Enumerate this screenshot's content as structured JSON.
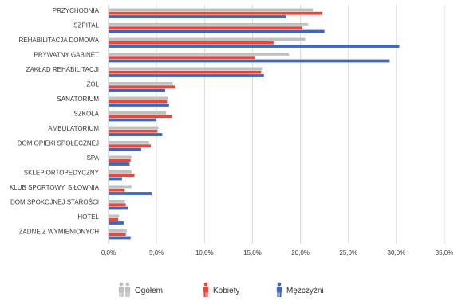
{
  "chart_data": {
    "type": "bar",
    "orientation": "horizontal",
    "categories": [
      "PRZYCHODNIA",
      "SZPITAL",
      "REHABILITACJA DOMOWA",
      "PRYWATNY GABINET",
      "ZAKŁAD REHABILITACJI",
      "ZOL",
      "SANATORIUM",
      "SZKOŁA",
      "AMBULATORIUM",
      "DOM OPIEKI SPOŁECZNEJ",
      "SPA",
      "SKLEP ORTOPEDYCZNY",
      "KLUB SPORTOWY, SIŁOWNIA",
      "DOM SPOKOJNEJ STAROŚCI",
      "HOTEL",
      "ŻADNE Z WYMIENIONYCH"
    ],
    "series": [
      {
        "name": "Ogółem",
        "color": "#c0c0c0",
        "values": [
          21.3,
          20.8,
          20.5,
          18.8,
          16.0,
          6.7,
          6.2,
          6.0,
          5.2,
          4.2,
          2.4,
          2.4,
          2.4,
          1.7,
          1.1,
          1.9
        ]
      },
      {
        "name": "Kobiety",
        "color": "#e8473a",
        "values": [
          22.3,
          20.2,
          17.2,
          15.3,
          15.9,
          6.9,
          6.1,
          6.6,
          5.1,
          4.4,
          2.3,
          2.7,
          1.7,
          1.8,
          1.0,
          1.8
        ]
      },
      {
        "name": "Mężczyźni",
        "color": "#3f67b3",
        "values": [
          18.5,
          22.5,
          30.3,
          29.3,
          16.2,
          5.9,
          6.3,
          4.9,
          5.6,
          3.4,
          2.2,
          1.4,
          4.5,
          2.0,
          1.6,
          2.3
        ]
      }
    ],
    "xticks": [
      "0,0%",
      "5,0%",
      "10,0%",
      "15,0%",
      "20,0%",
      "25,0%",
      "30,0%",
      "35,0%"
    ],
    "xlim": [
      0,
      35
    ],
    "grid": "vertical",
    "legend_position": "bottom",
    "title": "",
    "xlabel": "",
    "ylabel": ""
  }
}
